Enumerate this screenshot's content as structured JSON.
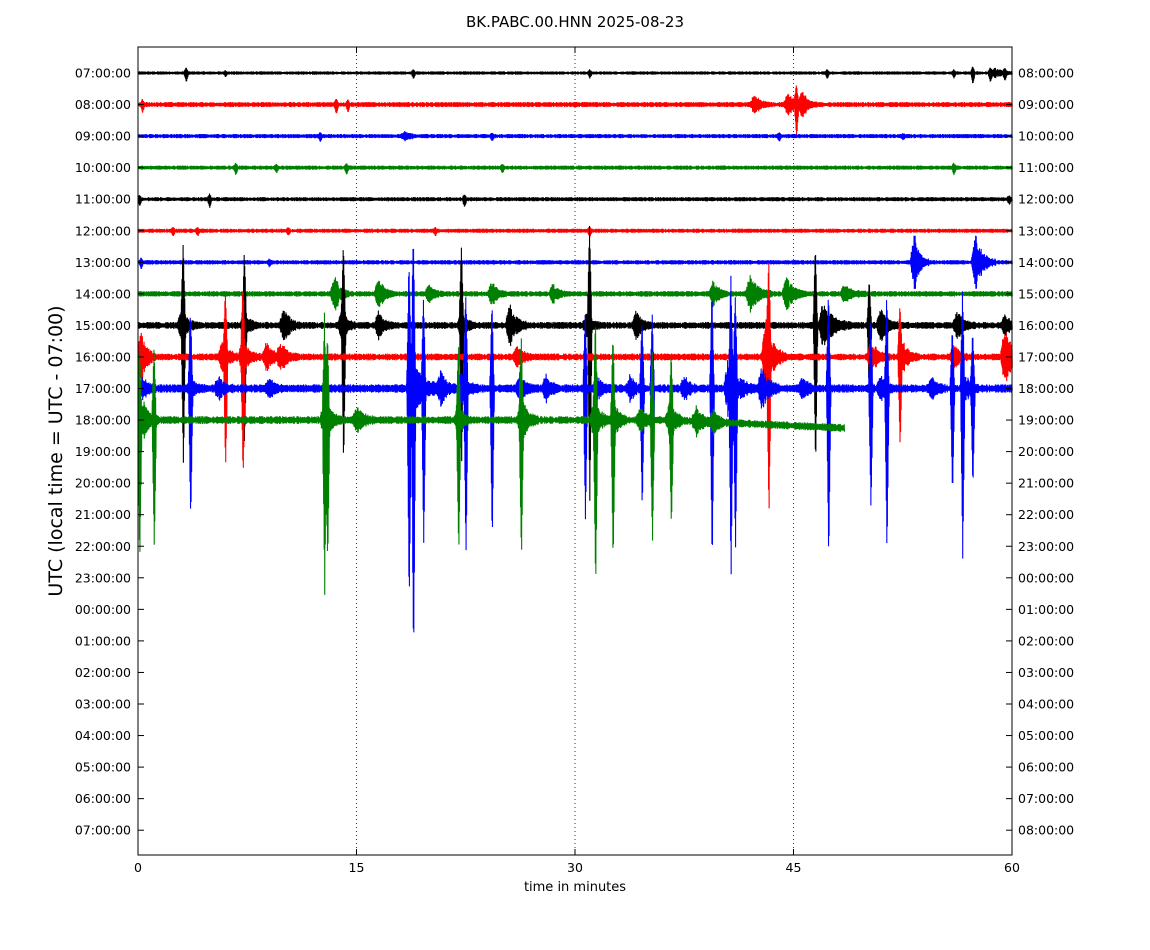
{
  "chart_data": {
    "type": "line",
    "title": "BK.PABC.00.HNN 2025-08-23",
    "xlabel": "time in minutes",
    "ylabel": "UTC (local time = UTC - 07:00)",
    "xlim": [
      0,
      60
    ],
    "x_ticks": [
      "0",
      "15",
      "30",
      "45",
      "60"
    ],
    "x_tick_values": [
      0,
      15,
      30,
      45,
      60
    ],
    "left_ticks": [
      "07:00:00",
      "08:00:00",
      "09:00:00",
      "10:00:00",
      "11:00:00",
      "12:00:00",
      "13:00:00",
      "14:00:00",
      "15:00:00",
      "16:00:00",
      "17:00:00",
      "18:00:00",
      "19:00:00",
      "20:00:00",
      "21:00:00",
      "22:00:00",
      "23:00:00",
      "00:00:00",
      "01:00:00",
      "02:00:00",
      "03:00:00",
      "04:00:00",
      "05:00:00",
      "06:00:00",
      "07:00:00"
    ],
    "right_ticks": [
      "08:00:00",
      "09:00:00",
      "10:00:00",
      "11:00:00",
      "12:00:00",
      "13:00:00",
      "14:00:00",
      "15:00:00",
      "16:00:00",
      "17:00:00",
      "18:00:00",
      "19:00:00",
      "20:00:00",
      "21:00:00",
      "22:00:00",
      "23:00:00",
      "00:00:00",
      "01:00:00",
      "02:00:00",
      "03:00:00",
      "04:00:00",
      "05:00:00",
      "06:00:00",
      "07:00:00",
      "08:00:00"
    ],
    "grid": "vertical dotted at 15, 30, 45",
    "colors": [
      "#000000",
      "#ff0000",
      "#0000ff",
      "#008000"
    ],
    "traces": [
      {
        "row": 0,
        "color": "#000000",
        "end_minute": 60,
        "noise": 1.2,
        "spikes": [
          {
            "t": 3.3,
            "a": 8
          },
          {
            "t": 6.0,
            "a": 3
          },
          {
            "t": 18.9,
            "a": 5
          },
          {
            "t": 31.0,
            "a": 4
          },
          {
            "t": 47.3,
            "a": 5
          },
          {
            "t": 56.0,
            "a": 4
          },
          {
            "t": 57.3,
            "a": 10
          },
          {
            "t": 58.5,
            "a": 8
          },
          {
            "t": 59.5,
            "a": 6
          }
        ],
        "bursts": [
          {
            "t": 58.8,
            "a": 5,
            "w": 1.2
          }
        ]
      },
      {
        "row": 1,
        "color": "#ff0000",
        "end_minute": 60,
        "noise": 1.8,
        "spikes": [
          {
            "t": 0.3,
            "a": 6
          },
          {
            "t": 13.6,
            "a": 8
          },
          {
            "t": 14.4,
            "a": 6
          },
          {
            "t": 45.2,
            "a": 28
          }
        ],
        "bursts": [
          {
            "t": 42.3,
            "a": 9,
            "w": 1.2
          },
          {
            "t": 44.6,
            "a": 12,
            "w": 1.3
          },
          {
            "t": 45.6,
            "a": 14,
            "w": 1.0
          }
        ]
      },
      {
        "row": 2,
        "color": "#0000ff",
        "end_minute": 60,
        "noise": 1.5,
        "spikes": [
          {
            "t": 12.5,
            "a": 4
          },
          {
            "t": 24.3,
            "a": 4
          },
          {
            "t": 44.0,
            "a": 4
          },
          {
            "t": 52.5,
            "a": 3
          }
        ],
        "bursts": [
          {
            "t": 18.3,
            "a": 5,
            "w": 1.0
          }
        ]
      },
      {
        "row": 3,
        "color": "#008000",
        "end_minute": 60,
        "noise": 1.5,
        "spikes": [
          {
            "t": 6.7,
            "a": 6
          },
          {
            "t": 9.5,
            "a": 4
          },
          {
            "t": 14.3,
            "a": 6
          },
          {
            "t": 25.0,
            "a": 4
          },
          {
            "t": 56.0,
            "a": 6
          }
        ],
        "bursts": []
      },
      {
        "row": 4,
        "color": "#000000",
        "end_minute": 60,
        "noise": 1.5,
        "spikes": [
          {
            "t": 0.1,
            "a": 6
          },
          {
            "t": 4.9,
            "a": 7
          },
          {
            "t": 22.4,
            "a": 7
          },
          {
            "t": 59.8,
            "a": 4
          }
        ],
        "bursts": []
      },
      {
        "row": 5,
        "color": "#ff0000",
        "end_minute": 60,
        "noise": 1.5,
        "spikes": [
          {
            "t": 2.4,
            "a": 4
          },
          {
            "t": 4.1,
            "a": 4
          },
          {
            "t": 10.3,
            "a": 3
          },
          {
            "t": 20.4,
            "a": 4
          },
          {
            "t": 31.0,
            "a": 5
          }
        ],
        "bursts": []
      },
      {
        "row": 6,
        "color": "#0000ff",
        "end_minute": 60,
        "noise": 1.6,
        "spikes": [
          {
            "t": 0.2,
            "a": 5
          },
          {
            "t": 9.0,
            "a": 3
          }
        ],
        "bursts": [
          {
            "t": 53.3,
            "a": 30,
            "w": 1.0
          },
          {
            "t": 57.5,
            "a": 28,
            "w": 1.4
          }
        ]
      },
      {
        "row": 7,
        "color": "#008000",
        "end_minute": 60,
        "noise": 2.0,
        "spikes": [],
        "bursts": [
          {
            "t": 13.5,
            "a": 18,
            "w": 1.0
          },
          {
            "t": 16.5,
            "a": 17,
            "w": 1.1
          },
          {
            "t": 20.0,
            "a": 9,
            "w": 1.0
          },
          {
            "t": 24.3,
            "a": 12,
            "w": 1.0
          },
          {
            "t": 28.5,
            "a": 9,
            "w": 1.0
          },
          {
            "t": 39.5,
            "a": 14,
            "w": 1.0
          },
          {
            "t": 42.0,
            "a": 18,
            "w": 1.6
          },
          {
            "t": 44.5,
            "a": 18,
            "w": 1.4
          },
          {
            "t": 48.5,
            "a": 8,
            "w": 1.6
          }
        ]
      },
      {
        "row": 8,
        "color": "#000000",
        "end_minute": 60,
        "noise": 2.5,
        "spikes": [
          {
            "t": 3.1,
            "a": 130
          },
          {
            "t": 7.3,
            "a": 110
          },
          {
            "t": 14.1,
            "a": 130
          },
          {
            "t": 22.2,
            "a": 130
          },
          {
            "t": 31.0,
            "a": 170
          },
          {
            "t": 46.5,
            "a": 140
          },
          {
            "t": 50.2,
            "a": 80
          }
        ],
        "bursts": [
          {
            "t": 3.0,
            "a": 16,
            "w": 1.1
          },
          {
            "t": 7.3,
            "a": 14,
            "w": 1.0
          },
          {
            "t": 10.0,
            "a": 16,
            "w": 1.2
          },
          {
            "t": 14.0,
            "a": 14,
            "w": 1.0
          },
          {
            "t": 16.5,
            "a": 12,
            "w": 1.0
          },
          {
            "t": 22.2,
            "a": 12,
            "w": 1.0
          },
          {
            "t": 25.5,
            "a": 20,
            "w": 1.4
          },
          {
            "t": 30.8,
            "a": 12,
            "w": 1.0
          },
          {
            "t": 34.2,
            "a": 16,
            "w": 1.0
          },
          {
            "t": 47.0,
            "a": 22,
            "w": 2.0
          },
          {
            "t": 51.0,
            "a": 18,
            "w": 1.2
          },
          {
            "t": 56.2,
            "a": 14,
            "w": 1.2
          },
          {
            "t": 59.5,
            "a": 10,
            "w": 1.0
          }
        ]
      },
      {
        "row": 9,
        "color": "#ff0000",
        "end_minute": 60,
        "noise": 2.5,
        "spikes": [
          {
            "t": 6.0,
            "a": 100
          },
          {
            "t": 7.2,
            "a": 110
          },
          {
            "t": 43.3,
            "a": 135
          },
          {
            "t": 52.3,
            "a": 85
          }
        ],
        "bursts": [
          {
            "t": 0.2,
            "a": 26,
            "w": 1.0
          },
          {
            "t": 5.8,
            "a": 16,
            "w": 1.4
          },
          {
            "t": 7.2,
            "a": 16,
            "w": 1.2
          },
          {
            "t": 8.8,
            "a": 14,
            "w": 1.3
          },
          {
            "t": 9.8,
            "a": 14,
            "w": 1.2
          },
          {
            "t": 26.0,
            "a": 10,
            "w": 1.2
          },
          {
            "t": 43.1,
            "a": 40,
            "w": 1.4
          },
          {
            "t": 50.3,
            "a": 16,
            "w": 1.4
          },
          {
            "t": 52.5,
            "a": 14,
            "w": 1.2
          },
          {
            "t": 56.0,
            "a": 14,
            "w": 1.0
          },
          {
            "t": 59.5,
            "a": 28,
            "w": 1.4
          }
        ]
      },
      {
        "row": 10,
        "color": "#0000ff",
        "end_minute": 60,
        "noise": 3.0,
        "spikes": [
          {
            "t": 3.6,
            "a": 120
          },
          {
            "t": 18.6,
            "a": 200
          },
          {
            "t": 18.9,
            "a": 260
          },
          {
            "t": 19.6,
            "a": 150
          },
          {
            "t": 22.5,
            "a": 160
          },
          {
            "t": 24.3,
            "a": 150
          },
          {
            "t": 30.7,
            "a": 130
          },
          {
            "t": 34.6,
            "a": 120
          },
          {
            "t": 35.3,
            "a": 130
          },
          {
            "t": 39.4,
            "a": 175
          },
          {
            "t": 40.7,
            "a": 165
          },
          {
            "t": 41.0,
            "a": 155
          },
          {
            "t": 47.4,
            "a": 170
          },
          {
            "t": 50.3,
            "a": 120
          },
          {
            "t": 51.4,
            "a": 160
          },
          {
            "t": 55.9,
            "a": 105
          },
          {
            "t": 56.6,
            "a": 165
          },
          {
            "t": 57.3,
            "a": 95
          }
        ],
        "bursts": [
          {
            "t": 0.3,
            "a": 10,
            "w": 1.0
          },
          {
            "t": 3.6,
            "a": 12,
            "w": 1.0
          },
          {
            "t": 5.5,
            "a": 12,
            "w": 1.0
          },
          {
            "t": 9.0,
            "a": 10,
            "w": 1.0
          },
          {
            "t": 18.7,
            "a": 30,
            "w": 2.2
          },
          {
            "t": 20.8,
            "a": 18,
            "w": 1.0
          },
          {
            "t": 22.2,
            "a": 18,
            "w": 1.2
          },
          {
            "t": 26.2,
            "a": 14,
            "w": 1.0
          },
          {
            "t": 28.0,
            "a": 12,
            "w": 1.0
          },
          {
            "t": 31.5,
            "a": 12,
            "w": 1.0
          },
          {
            "t": 33.8,
            "a": 12,
            "w": 1.0
          },
          {
            "t": 37.5,
            "a": 12,
            "w": 1.0
          },
          {
            "t": 40.5,
            "a": 30,
            "w": 1.8
          },
          {
            "t": 42.8,
            "a": 22,
            "w": 1.3
          },
          {
            "t": 45.6,
            "a": 10,
            "w": 1.0
          },
          {
            "t": 51.0,
            "a": 12,
            "w": 1.0
          },
          {
            "t": 54.5,
            "a": 10,
            "w": 1.0
          },
          {
            "t": 56.8,
            "a": 12,
            "w": 1.0
          }
        ]
      },
      {
        "row": 11,
        "color": "#008000",
        "end_minute": 48.5,
        "noise": 2.8,
        "drift": 8,
        "spikes": [
          {
            "t": 0.1,
            "a": 140
          },
          {
            "t": 1.1,
            "a": 125
          },
          {
            "t": 12.8,
            "a": 150
          },
          {
            "t": 13.0,
            "a": 130
          },
          {
            "t": 22.0,
            "a": 125
          },
          {
            "t": 26.3,
            "a": 120
          },
          {
            "t": 31.4,
            "a": 150
          },
          {
            "t": 32.6,
            "a": 130
          },
          {
            "t": 35.3,
            "a": 120
          },
          {
            "t": 36.6,
            "a": 90
          }
        ],
        "bursts": [
          {
            "t": 0.4,
            "a": 18,
            "w": 1.0
          },
          {
            "t": 12.8,
            "a": 24,
            "w": 1.2
          },
          {
            "t": 15.0,
            "a": 14,
            "w": 1.2
          },
          {
            "t": 22.0,
            "a": 14,
            "w": 1.0
          },
          {
            "t": 26.3,
            "a": 24,
            "w": 1.2
          },
          {
            "t": 31.3,
            "a": 20,
            "w": 1.2
          },
          {
            "t": 32.7,
            "a": 16,
            "w": 1.0
          },
          {
            "t": 34.5,
            "a": 14,
            "w": 1.0
          },
          {
            "t": 36.5,
            "a": 18,
            "w": 1.2
          },
          {
            "t": 38.3,
            "a": 16,
            "w": 1.2
          },
          {
            "t": 39.5,
            "a": 12,
            "w": 1.0
          }
        ]
      }
    ]
  }
}
